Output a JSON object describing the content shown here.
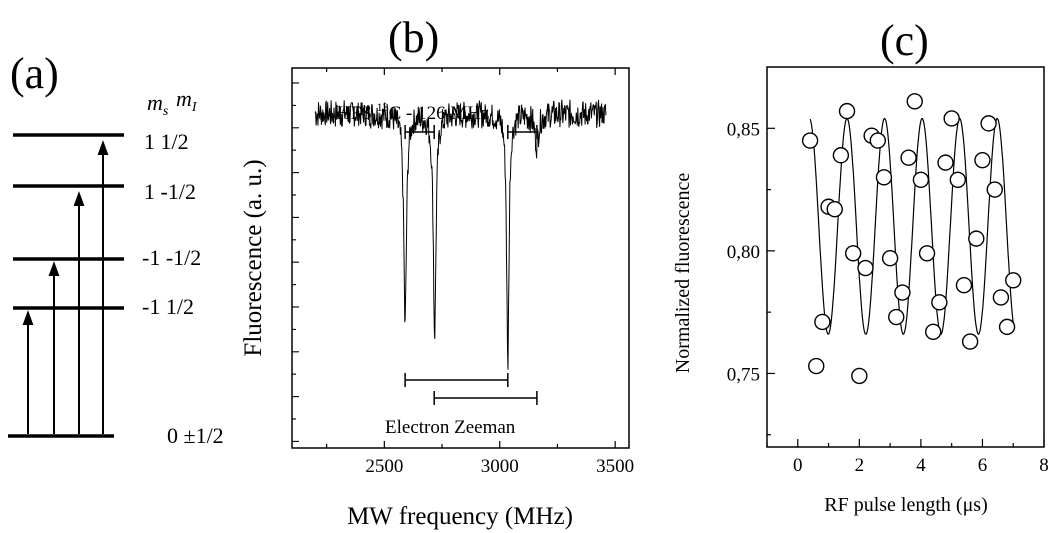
{
  "panels": {
    "a": {
      "label": "(a)"
    },
    "b": {
      "label": "(b)"
    },
    "c": {
      "label": "(c)"
    }
  },
  "chart_data": [
    {
      "type": "diagram",
      "panel": "(a)",
      "header": {
        "ms": "m",
        "ms_sub": "s",
        "mi": "m",
        "mi_sub": "I"
      },
      "levels": [
        {
          "label": "1 1/2"
        },
        {
          "label": "1 -1/2"
        },
        {
          "label": "-1 -1/2"
        },
        {
          "label": "-1 1/2"
        },
        {
          "label": "0 ±1/2"
        }
      ],
      "transitions": [
        "0 ±1/2 → -1 1/2",
        "0 ±1/2 → -1 -1/2",
        "0 ±1/2 → 1 -1/2",
        "0 ±1/2 → 1 1/2"
      ]
    },
    {
      "type": "line",
      "panel": "(b)",
      "xlabel": "MW frequency (MHz)",
      "ylabel": "Fluorescence (a. u.)",
      "xlim": [
        2100,
        3560
      ],
      "xticks": [
        2500,
        3000,
        3500
      ],
      "ylim": [
        0,
        1
      ],
      "baseline": 0.88,
      "dips": [
        {
          "x": 2590,
          "depth": 0.56,
          "width": 7
        },
        {
          "x": 2718,
          "depth": 0.58,
          "width": 7
        },
        {
          "x": 3035,
          "depth": 0.66,
          "width": 6
        },
        {
          "x": 3160,
          "depth": 0.08,
          "width": 10
        }
      ],
      "noise": 0.035,
      "x_start": 2200,
      "x_end": 3460,
      "annotations": {
        "hfs": {
          "text_pre": "HFS ",
          "text_sup": "13",
          "text_post": "C - 126 MHz",
          "brackets": [
            [
              2590,
              2716
            ],
            [
              3035,
              3161
            ]
          ]
        },
        "zeeman": {
          "text": "Electron Zeeman",
          "brackets": [
            [
              2590,
              3035
            ],
            [
              2716,
              3161
            ]
          ]
        }
      }
    },
    {
      "type": "scatter",
      "panel": "(c)",
      "xlabel": "RF pulse length (μs)",
      "ylabel": "Normalized fluorescence",
      "xlim": [
        -1,
        8
      ],
      "ylim": [
        0.72,
        0.875
      ],
      "xticks": [
        0,
        2,
        4,
        6,
        8
      ],
      "yticks": [
        0.75,
        0.8,
        0.85
      ],
      "ytick_labels": [
        "0,75",
        "0,80",
        "0,85"
      ],
      "points": [
        [
          0.4,
          0.845
        ],
        [
          0.6,
          0.753
        ],
        [
          0.8,
          0.771
        ],
        [
          1.0,
          0.818
        ],
        [
          1.2,
          0.817
        ],
        [
          1.4,
          0.839
        ],
        [
          1.6,
          0.857
        ],
        [
          1.8,
          0.799
        ],
        [
          2.0,
          0.749
        ],
        [
          2.2,
          0.793
        ],
        [
          2.4,
          0.847
        ],
        [
          2.6,
          0.845
        ],
        [
          2.8,
          0.83
        ],
        [
          3.0,
          0.797
        ],
        [
          3.2,
          0.773
        ],
        [
          3.4,
          0.783
        ],
        [
          3.6,
          0.838
        ],
        [
          3.8,
          0.861
        ],
        [
          4.0,
          0.829
        ],
        [
          4.2,
          0.799
        ],
        [
          4.4,
          0.767
        ],
        [
          4.6,
          0.779
        ],
        [
          4.8,
          0.836
        ],
        [
          5.0,
          0.854
        ],
        [
          5.2,
          0.829
        ],
        [
          5.4,
          0.786
        ],
        [
          5.6,
          0.763
        ],
        [
          5.8,
          0.805
        ],
        [
          6.0,
          0.837
        ],
        [
          6.2,
          0.852
        ],
        [
          6.4,
          0.825
        ],
        [
          6.6,
          0.781
        ],
        [
          6.8,
          0.769
        ],
        [
          7.0,
          0.788
        ]
      ],
      "fit": {
        "x_start": 0.4,
        "x_end": 7.0,
        "center": 0.81,
        "amplitude": 0.044,
        "period": 1.22,
        "phase_x": 1.6
      }
    }
  ]
}
